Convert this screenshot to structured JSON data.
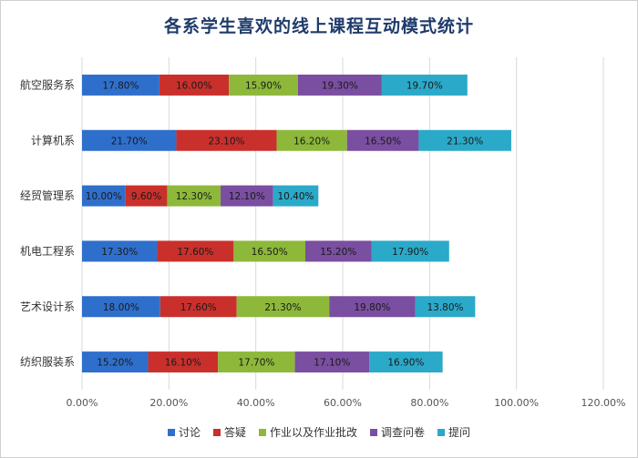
{
  "chart_data": {
    "type": "bar",
    "orientation": "horizontal",
    "stacked": true,
    "title": "各系学生喜欢的线上课程互动模式统计",
    "categories": [
      "航空服务系",
      "计算机系",
      "经贸管理系",
      "机电工程系",
      "艺术设计系",
      "纺织服装系"
    ],
    "series": [
      {
        "name": "讨论",
        "color": "#2f6fcc",
        "values": [
          17.8,
          21.7,
          10.0,
          17.3,
          18.0,
          15.2
        ]
      },
      {
        "name": "答疑",
        "color": "#c9302c",
        "values": [
          16.0,
          23.1,
          9.6,
          17.6,
          17.6,
          16.1
        ]
      },
      {
        "name": "作业以及作业批改",
        "color": "#8db83a",
        "values": [
          15.9,
          16.2,
          12.3,
          16.5,
          21.3,
          17.7
        ]
      },
      {
        "name": "调查问卷",
        "color": "#7a4ea0",
        "values": [
          19.3,
          16.5,
          12.1,
          15.2,
          19.8,
          17.1
        ]
      },
      {
        "name": "提问",
        "color": "#2ba9c9",
        "values": [
          19.7,
          21.3,
          10.4,
          17.9,
          13.8,
          16.9
        ]
      }
    ],
    "value_labels": [
      [
        "17.80%",
        "16.00%",
        "15.90%",
        "19.30%",
        "19.70%"
      ],
      [
        "21.70%",
        "23.10%",
        "16.20%",
        "16.50%",
        "21.30%"
      ],
      [
        "10.00%",
        "9.60%",
        "12.30%",
        "12.10%",
        "10.40%"
      ],
      [
        "17.30%",
        "17.60%",
        "16.50%",
        "15.20%",
        "17.90%"
      ],
      [
        "18.00%",
        "17.60%",
        "21.30%",
        "19.80%",
        "13.80%"
      ],
      [
        "15.20%",
        "16.10%",
        "17.70%",
        "17.10%",
        "16.90%"
      ]
    ],
    "xlim": [
      0,
      120
    ],
    "x_ticks": [
      "0.00%",
      "20.00%",
      "40.00%",
      "60.00%",
      "80.00%",
      "100.00%",
      "120.00%"
    ],
    "grid": true,
    "legend_position": "bottom"
  }
}
